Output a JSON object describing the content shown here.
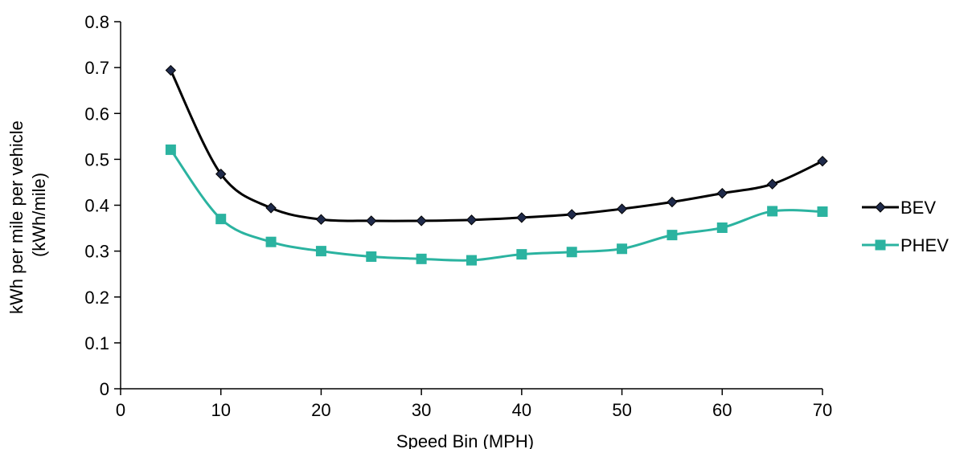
{
  "chart_data": {
    "type": "line",
    "title": "",
    "xlabel": "Speed Bin (MPH)",
    "ylabel": [
      "kWh per mile per vehicle",
      "(kWh/mile)"
    ],
    "xlim": [
      0,
      70
    ],
    "ylim": [
      0,
      0.8
    ],
    "x_ticks": [
      0,
      10,
      20,
      30,
      40,
      50,
      60,
      70
    ],
    "y_ticks": [
      0,
      0.1,
      0.2,
      0.3,
      0.4,
      0.5,
      0.6,
      0.7,
      0.8
    ],
    "x_tick_labels": [
      "0",
      "10",
      "20",
      "30",
      "40",
      "50",
      "60",
      "70"
    ],
    "y_tick_labels": [
      "0",
      "0.1",
      "0.2",
      "0.3",
      "0.4",
      "0.5",
      "0.6",
      "0.7",
      "0.8"
    ],
    "grid": false,
    "legend": "right",
    "x": [
      5,
      10,
      15,
      20,
      25,
      30,
      35,
      40,
      45,
      50,
      55,
      60,
      65,
      70
    ],
    "series": [
      {
        "name": "BEV",
        "color": "#000000",
        "marker": "diamond",
        "marker_color": "#1f2a4a",
        "values": [
          0.694,
          0.468,
          0.394,
          0.369,
          0.366,
          0.366,
          0.368,
          0.373,
          0.38,
          0.392,
          0.407,
          0.426,
          0.446,
          0.496
        ]
      },
      {
        "name": "PHEV",
        "color": "#2bb3a0",
        "marker": "square",
        "marker_color": "#2bb3a0",
        "values": [
          0.521,
          0.37,
          0.32,
          0.3,
          0.288,
          0.283,
          0.28,
          0.293,
          0.298,
          0.305,
          0.335,
          0.351,
          0.387,
          0.386
        ]
      }
    ]
  }
}
